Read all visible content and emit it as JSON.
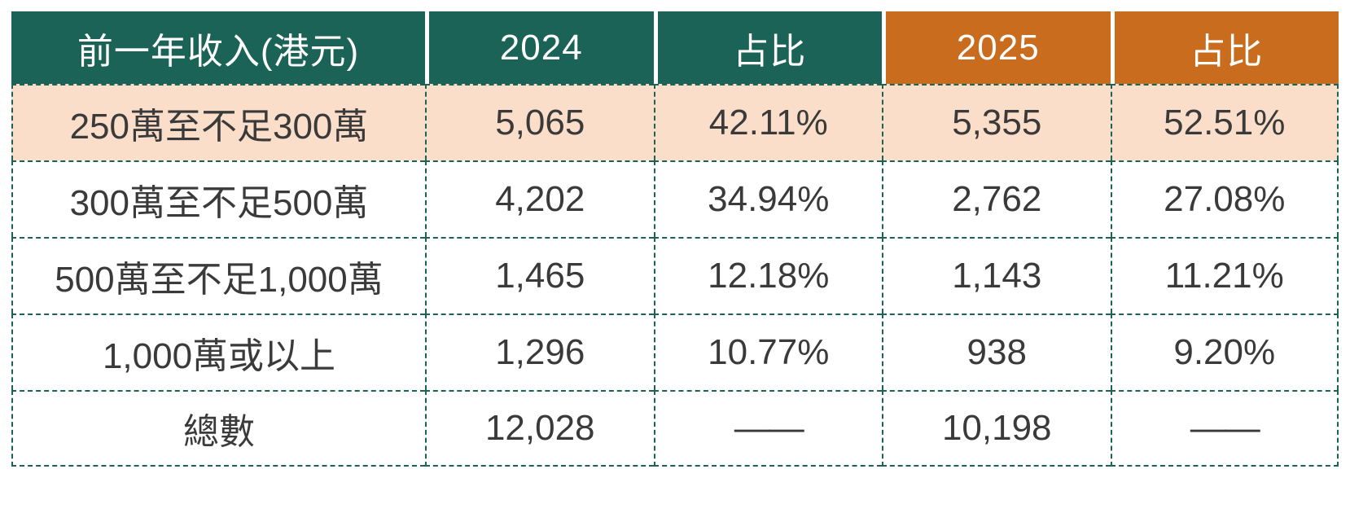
{
  "table": {
    "columns": [
      {
        "label": "前一年收入(港元)",
        "theme": "teal"
      },
      {
        "label": "2024",
        "theme": "teal"
      },
      {
        "label": "占比",
        "theme": "teal"
      },
      {
        "label": "2025",
        "theme": "orange"
      },
      {
        "label": "占比",
        "theme": "orange"
      }
    ],
    "rows": [
      {
        "highlighted": true,
        "cells": [
          "250萬至不足300萬",
          "5,065",
          "42.11%",
          "5,355",
          "52.51%"
        ]
      },
      {
        "highlighted": false,
        "cells": [
          "300萬至不足500萬",
          "4,202",
          "34.94%",
          "2,762",
          "27.08%"
        ]
      },
      {
        "highlighted": false,
        "cells": [
          "500萬至不足1,000萬",
          "1,465",
          "12.18%",
          "1,143",
          "11.21%"
        ]
      },
      {
        "highlighted": false,
        "cells": [
          "1,000萬或以上",
          "1,296",
          "10.77%",
          "938",
          "9.20%"
        ]
      },
      {
        "highlighted": false,
        "cells": [
          "總數",
          "12,028",
          "——",
          "10,198",
          "——"
        ]
      }
    ]
  },
  "colors": {
    "header_teal": "#1b6356",
    "header_orange": "#c96c1d",
    "highlight_row": "#fbdeca",
    "grid_border": "#1b6356",
    "body_text": "#3a3a3a",
    "header_text": "#ffffff"
  },
  "chart_data": {
    "type": "table",
    "title": "前一年收入(港元) 2024 vs 2025",
    "columns": [
      "前一年收入(港元)",
      "2024",
      "占比",
      "2025",
      "占比"
    ],
    "rows": [
      [
        "250萬至不足300萬",
        5065,
        "42.11%",
        5355,
        "52.51%"
      ],
      [
        "300萬至不足500萬",
        4202,
        "34.94%",
        2762,
        "27.08%"
      ],
      [
        "500萬至不足1,000萬",
        1465,
        "12.18%",
        1143,
        "11.21%"
      ],
      [
        "1,000萬或以上",
        1296,
        "10.77%",
        938,
        "9.20%"
      ],
      [
        "總數",
        12028,
        "——",
        10198,
        "——"
      ]
    ],
    "highlighted_row_index": 0,
    "layout": {
      "header_fill": [
        "teal",
        "teal",
        "teal",
        "orange",
        "orange"
      ],
      "grid": "dashed"
    }
  }
}
